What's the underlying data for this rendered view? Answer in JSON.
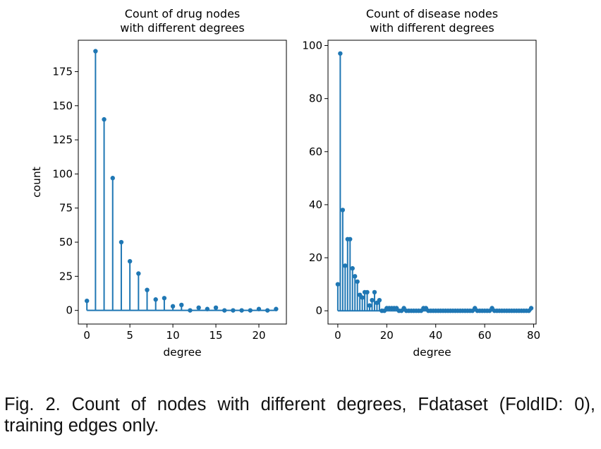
{
  "chart_data": [
    {
      "type": "stem",
      "title": [
        "Count of drug nodes",
        "with different degrees"
      ],
      "xlabel": "degree",
      "ylabel": "count",
      "xlim": [
        -1,
        23.2
      ],
      "ylim": [
        -10,
        198
      ],
      "xticks": [
        0,
        5,
        10,
        15,
        20
      ],
      "yticks": [
        0,
        25,
        50,
        75,
        100,
        125,
        150,
        175
      ],
      "color": "#1f77b4",
      "x": [
        0,
        1,
        2,
        3,
        4,
        5,
        6,
        7,
        8,
        9,
        10,
        11,
        12,
        13,
        14,
        15,
        16,
        17,
        18,
        19,
        20,
        21,
        22
      ],
      "y": [
        7,
        190,
        140,
        97,
        50,
        36,
        27,
        15,
        8,
        9,
        3,
        4,
        0,
        2,
        1,
        2,
        0,
        0,
        0,
        0,
        1,
        0,
        1
      ]
    },
    {
      "type": "stem",
      "title": [
        "Count of disease nodes",
        "with different degrees"
      ],
      "xlabel": "degree",
      "ylabel": "",
      "xlim": [
        -4,
        81
      ],
      "ylim": [
        -5,
        102
      ],
      "xticks": [
        0,
        20,
        40,
        60,
        80
      ],
      "yticks": [
        0,
        20,
        40,
        60,
        80,
        100
      ],
      "color": "#1f77b4",
      "x": [
        0,
        1,
        2,
        3,
        4,
        5,
        6,
        7,
        8,
        9,
        10,
        11,
        12,
        13,
        14,
        15,
        16,
        17,
        18,
        19,
        20,
        21,
        22,
        23,
        24,
        25,
        26,
        27,
        28,
        29,
        30,
        31,
        32,
        33,
        34,
        35,
        36,
        37,
        38,
        39,
        40,
        41,
        42,
        43,
        44,
        45,
        46,
        47,
        48,
        49,
        50,
        51,
        52,
        53,
        54,
        55,
        56,
        57,
        58,
        59,
        60,
        61,
        62,
        63,
        64,
        65,
        66,
        67,
        68,
        69,
        70,
        71,
        72,
        73,
        74,
        75,
        76,
        77,
        78,
        79
      ],
      "y": [
        10,
        97,
        38,
        17,
        27,
        27,
        16,
        13,
        11,
        6,
        5,
        7,
        7,
        2,
        4,
        7,
        3,
        4,
        0,
        0,
        1,
        1,
        1,
        1,
        1,
        0,
        0,
        1,
        0,
        0,
        0,
        0,
        0,
        0,
        0,
        1,
        1,
        0,
        0,
        0,
        0,
        0,
        0,
        0,
        0,
        0,
        0,
        0,
        0,
        0,
        0,
        0,
        0,
        0,
        0,
        0,
        1,
        0,
        0,
        0,
        0,
        0,
        0,
        1,
        0,
        0,
        0,
        0,
        0,
        0,
        0,
        0,
        0,
        0,
        0,
        0,
        0,
        0,
        0,
        1
      ]
    }
  ],
  "caption": "Fig. 2. Count of nodes with different degrees, Fdataset (FoldID: 0), training edges only."
}
